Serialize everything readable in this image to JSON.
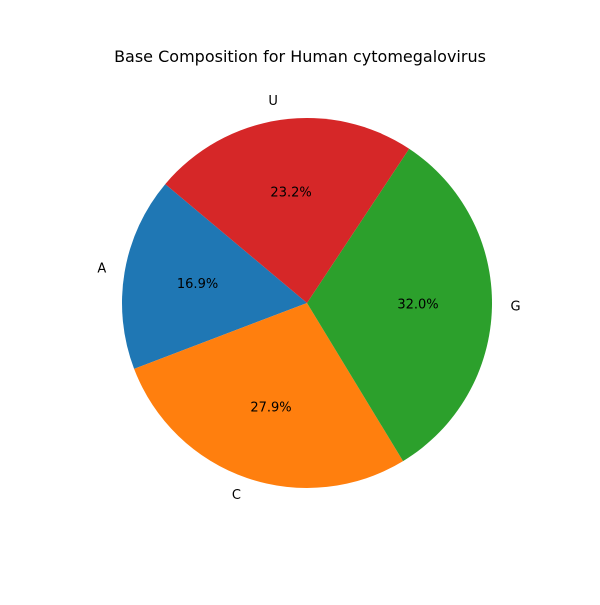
{
  "chart_data": {
    "type": "pie",
    "title": "Base Composition for Human cytomegalovirus",
    "categories": [
      "A",
      "C",
      "G",
      "U"
    ],
    "values": [
      16.9,
      27.9,
      32.0,
      23.2
    ],
    "value_labels": [
      "16.9%",
      "27.9%",
      "32.0%",
      "23.2%"
    ],
    "colors": [
      "#1f77b4",
      "#ff7f0e",
      "#2ca02c",
      "#d62728"
    ],
    "start_angle_deg": 140,
    "direction": "counterclockwise",
    "legend": "none"
  }
}
